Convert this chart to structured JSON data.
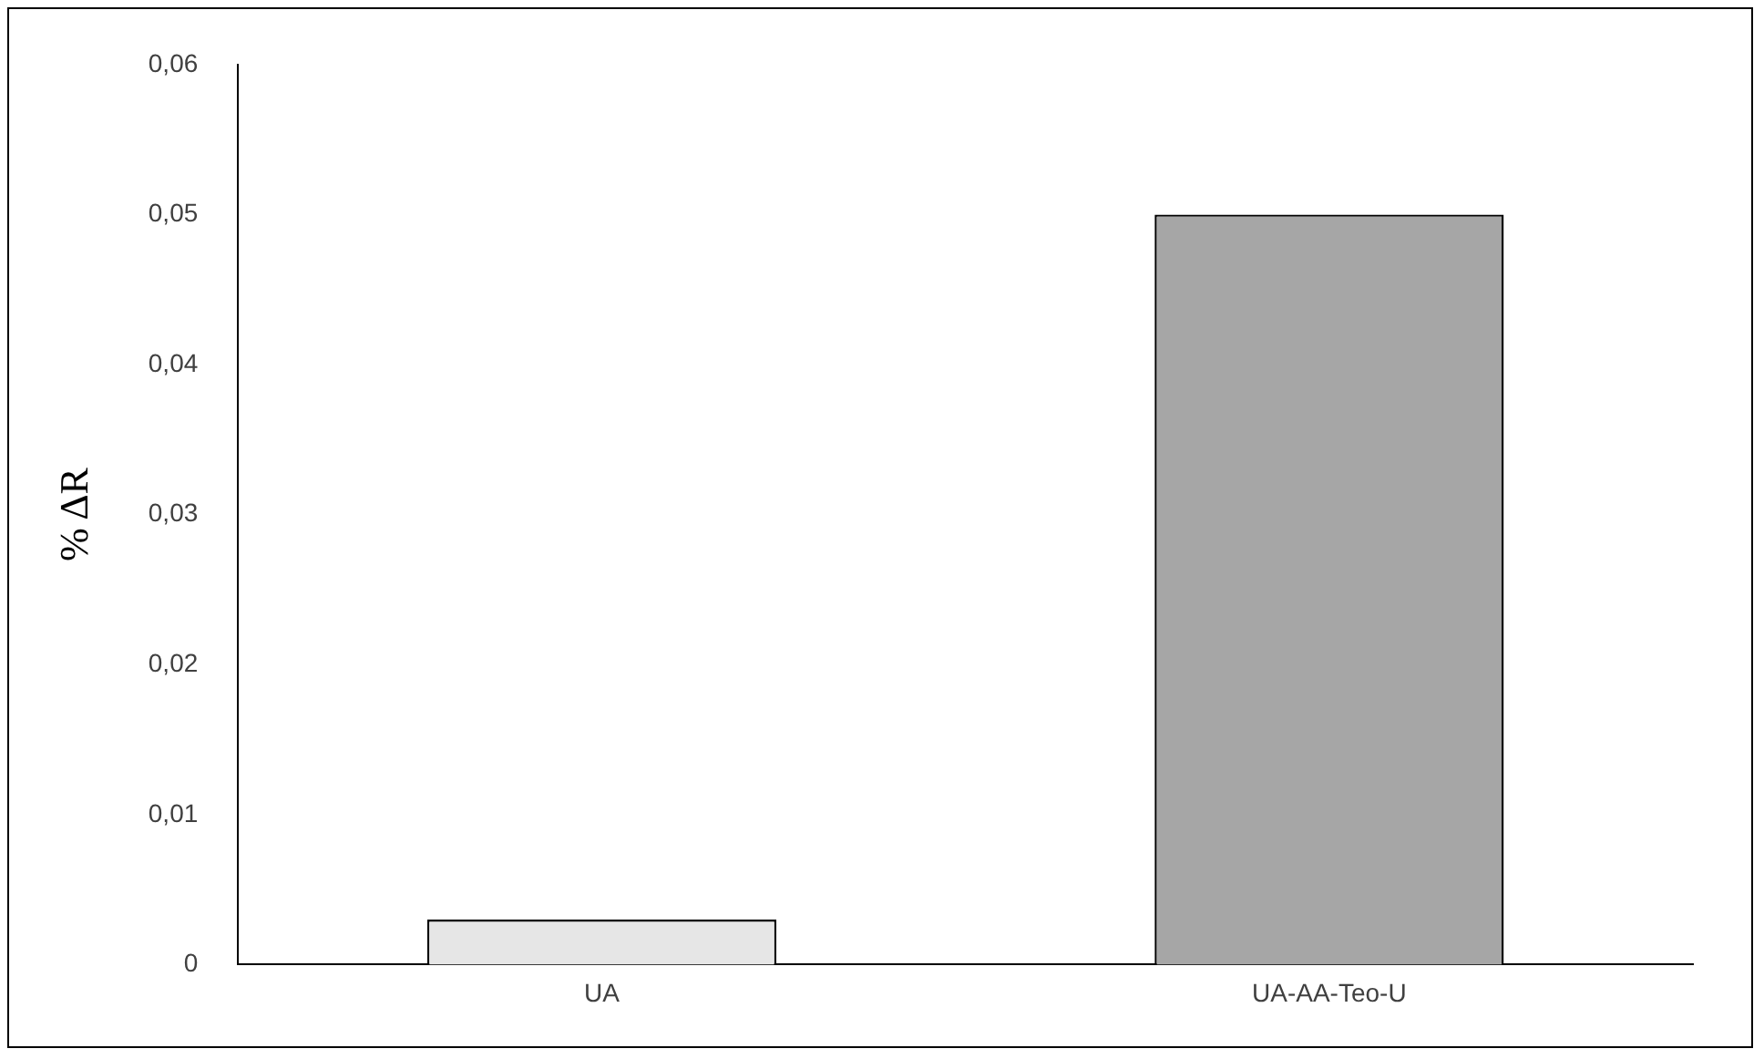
{
  "chart_data": {
    "type": "bar",
    "ylabel": "% ΔR",
    "categories": [
      "UA",
      "UA-AA-Teo-U"
    ],
    "series": [
      {
        "colors": [
          "#e6e6e6",
          "#a6a6a6"
        ],
        "values": [
          0.003,
          0.05
        ]
      }
    ],
    "ylim": [
      0,
      0.06
    ],
    "yticks": [
      {
        "value": 0,
        "label": "0"
      },
      {
        "value": 0.01,
        "label": "0,01"
      },
      {
        "value": 0.02,
        "label": "0,02"
      },
      {
        "value": 0.03,
        "label": "0,03"
      },
      {
        "value": 0.04,
        "label": "0,04"
      },
      {
        "value": 0.05,
        "label": "0,05"
      },
      {
        "value": 0.06,
        "label": "0,06"
      }
    ],
    "grid": false,
    "legend": false
  }
}
